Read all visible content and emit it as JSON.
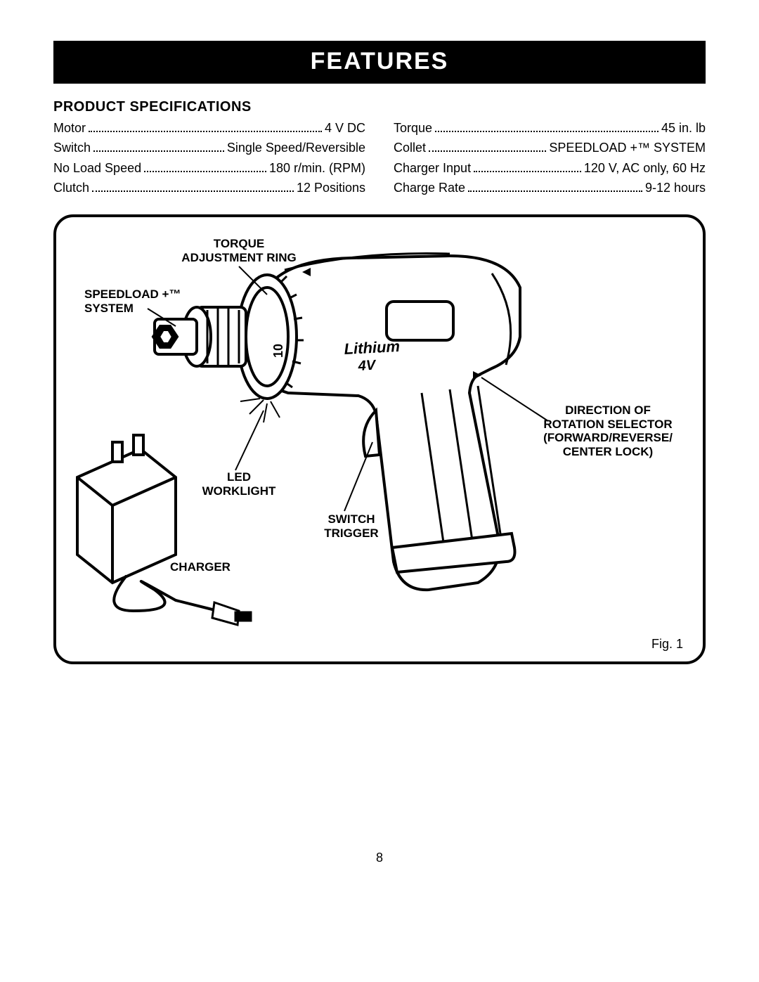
{
  "title": "FEATURES",
  "subhead": "PRODUCT SPECIFICATIONS",
  "specs_left": [
    {
      "label": "Motor",
      "value": "4 V DC"
    },
    {
      "label": "Switch",
      "value": "Single Speed/Reversible"
    },
    {
      "label": "No Load Speed",
      "value": "180 r/min. (RPM)"
    },
    {
      "label": "Clutch",
      "value": "12 Positions"
    }
  ],
  "specs_right": [
    {
      "label": "Torque",
      "value": "45 in. lb"
    },
    {
      "label": "Collet",
      "value": "SPEEDLOAD +™ SYSTEM"
    },
    {
      "label": "Charger Input",
      "value": "120 V, AC only, 60 Hz"
    },
    {
      "label": "Charge Rate",
      "value": "9-12 hours"
    }
  ],
  "callouts": {
    "torque_ring": "TORQUE\nADJUSTMENT RING",
    "speedload": "SPEEDLOAD +™\nSYSTEM",
    "led": "LED\nWORKLIGHT",
    "trigger": "SWITCH\nTRIGGER",
    "charger": "CHARGER",
    "rotation": "DIRECTION OF\nROTATION SELECTOR\n(FORWARD/REVERSE/\nCENTER LOCK)"
  },
  "drill_body_text": "Lithium\n4V",
  "clutch_number": "10",
  "fig_label": "Fig. 1",
  "page_number": "8",
  "colors": {
    "black": "#000000",
    "white": "#ffffff"
  }
}
